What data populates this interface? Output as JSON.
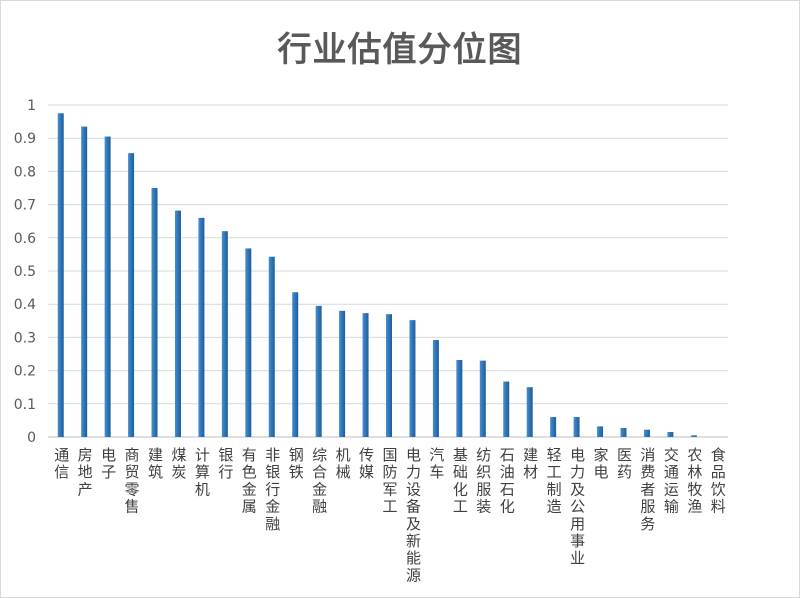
{
  "chart_data": {
    "type": "bar",
    "title": "行业估值分位图",
    "xlabel": "",
    "ylabel": "",
    "ylim": [
      0,
      1
    ],
    "yticks": [
      "0",
      "0.1",
      "0.2",
      "0.3",
      "0.4",
      "0.5",
      "0.6",
      "0.7",
      "0.8",
      "0.9",
      "1"
    ],
    "grid": true,
    "legend": "none",
    "bar_color": "#2e75b6",
    "categories": [
      "通信",
      "房地产",
      "电子",
      "商贸零售",
      "建筑",
      "煤炭",
      "计算机",
      "银行",
      "有色金属",
      "非银行金融",
      "钢铁",
      "综合金融",
      "机械",
      "传媒",
      "国防军工",
      "电力设备及新能源",
      "汽车",
      "基础化工",
      "纺织服装",
      "石油石化",
      "建材",
      "轻工制造",
      "电力及公用事业",
      "家电",
      "医药",
      "消费者服务",
      "交通运输",
      "农林牧渔",
      "食品饮料"
    ],
    "values": [
      0.975,
      0.935,
      0.905,
      0.855,
      0.75,
      0.682,
      0.66,
      0.62,
      0.568,
      0.543,
      0.436,
      0.395,
      0.38,
      0.373,
      0.37,
      0.352,
      0.292,
      0.232,
      0.23,
      0.167,
      0.15,
      0.06,
      0.06,
      0.032,
      0.027,
      0.022,
      0.015,
      0.005,
      0.0
    ]
  }
}
